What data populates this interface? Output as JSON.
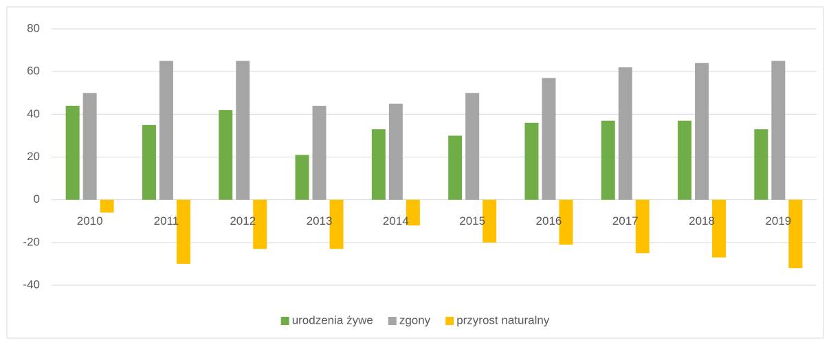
{
  "chart_data": {
    "type": "bar",
    "categories": [
      "2010",
      "2011",
      "2012",
      "2013",
      "2014",
      "2015",
      "2016",
      "2017",
      "2018",
      "2019"
    ],
    "series": [
      {
        "name": "urodzenia żywe",
        "color": "#70ad47",
        "values": [
          44,
          35,
          42,
          21,
          33,
          30,
          36,
          37,
          37,
          33
        ]
      },
      {
        "name": "zgony",
        "color": "#a5a5a5",
        "values": [
          50,
          65,
          65,
          44,
          45,
          50,
          57,
          62,
          64,
          65
        ]
      },
      {
        "name": "przyrost naturalny",
        "color": "#ffc000",
        "values": [
          -6,
          -30,
          -23,
          -23,
          -12,
          -20,
          -21,
          -25,
          -27,
          -32
        ]
      }
    ],
    "ylim": [
      -40,
      80
    ],
    "yticks": [
      -40,
      -20,
      0,
      20,
      40,
      60,
      80
    ],
    "grid": true,
    "legend": "bottom"
  }
}
